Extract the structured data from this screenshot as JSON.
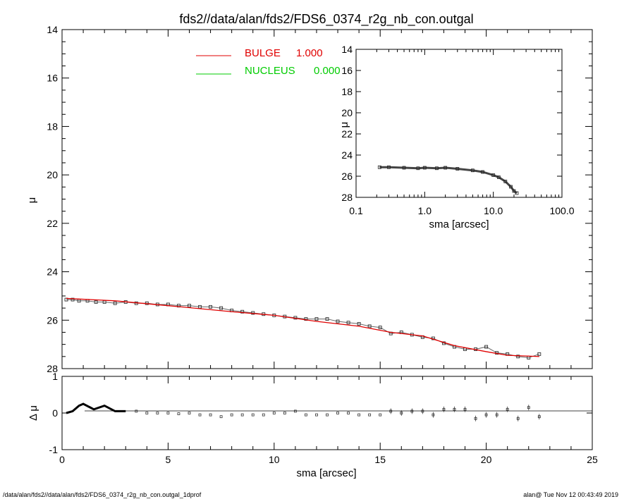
{
  "title": "fds2//data/alan/fds2/FDS6_0374_r2g_nb_con.outgal",
  "footer": {
    "left": "/data/alan/fds2//data/alan/fds2/FDS6_0374_r2g_nb_con.outgal_1dprof",
    "right": "alan@  Tue Nov 12 00:43:49 2019"
  },
  "colors": {
    "bulge": "#e00000",
    "nucleus": "#00cc00",
    "data": "#555555",
    "frame": "#000000"
  },
  "chart_data": [
    {
      "id": "main",
      "type": "scatter",
      "xlabel": "sma [arcsec]",
      "ylabel": "μ",
      "xlim": [
        0,
        25
      ],
      "ylim": [
        28,
        14
      ],
      "xticks": [
        "0",
        "5",
        "10",
        "15",
        "20",
        "25"
      ],
      "yticks": [
        "14",
        "16",
        "18",
        "20",
        "22",
        "24",
        "26",
        "28"
      ],
      "legend": [
        {
          "name": "BULGE",
          "value": "1.000",
          "color": "#e00000"
        },
        {
          "name": "NUCLEUS",
          "value": "0.000",
          "color": "#00cc00"
        }
      ],
      "legend_position": "top-center",
      "series": [
        {
          "name": "data",
          "x": [
            0.2,
            0.5,
            0.8,
            1.2,
            1.6,
            2.0,
            2.5,
            3.0,
            3.5,
            4.0,
            4.5,
            5.0,
            5.5,
            6.0,
            6.5,
            7.0,
            7.5,
            8.0,
            8.5,
            9.0,
            9.5,
            10.0,
            10.5,
            11.0,
            11.5,
            12.0,
            12.5,
            13.0,
            13.5,
            14.0,
            14.5,
            15.0,
            15.5,
            16.0,
            16.5,
            17.0,
            17.5,
            18.0,
            18.5,
            19.0,
            19.5,
            20.0,
            20.5,
            21.0,
            21.5,
            22.0,
            22.5
          ],
          "y": [
            25.15,
            25.15,
            25.2,
            25.2,
            25.25,
            25.25,
            25.3,
            25.25,
            25.3,
            25.3,
            25.35,
            25.35,
            25.4,
            25.4,
            25.45,
            25.45,
            25.5,
            25.6,
            25.65,
            25.7,
            25.75,
            25.8,
            25.85,
            25.9,
            25.95,
            25.95,
            25.95,
            26.05,
            26.1,
            26.15,
            26.25,
            26.3,
            26.55,
            26.5,
            26.6,
            26.7,
            26.75,
            26.95,
            27.1,
            27.2,
            27.2,
            27.1,
            27.35,
            27.4,
            27.5,
            27.55,
            27.4
          ]
        },
        {
          "name": "BULGE",
          "x": [
            0.2,
            2.5,
            5.0,
            8.0,
            10.0,
            12.0,
            14.0,
            15.5,
            17.0,
            18.5,
            20.0,
            21.0,
            22.5
          ],
          "y": [
            25.1,
            25.2,
            25.4,
            25.65,
            25.8,
            26.05,
            26.25,
            26.5,
            26.65,
            27.05,
            27.3,
            27.45,
            27.5
          ]
        }
      ]
    },
    {
      "id": "inset",
      "type": "line",
      "xlabel": "sma [arcsec]",
      "ylabel": "μ",
      "xscale": "log",
      "xlim": [
        0.1,
        100.0
      ],
      "ylim": [
        28,
        14
      ],
      "xticks": [
        "0.1",
        "1.0",
        "10.0",
        "100.0"
      ],
      "yticks": [
        "14",
        "16",
        "18",
        "20",
        "22",
        "24",
        "26",
        "28"
      ],
      "series": [
        {
          "name": "data",
          "x": [
            0.22,
            0.3,
            0.5,
            0.8,
            1.0,
            1.5,
            2.0,
            3.0,
            5.0,
            7.0,
            10.0,
            12.0,
            15.0,
            18.0,
            20.0,
            22.0
          ],
          "y": [
            25.15,
            25.15,
            25.2,
            25.25,
            25.2,
            25.25,
            25.2,
            25.3,
            25.45,
            25.6,
            25.9,
            26.1,
            26.5,
            27.0,
            27.4,
            27.6
          ]
        }
      ]
    },
    {
      "id": "residual",
      "type": "scatter",
      "xlabel": "sma [arcsec]",
      "ylabel": "Δ μ",
      "xlim": [
        0,
        25
      ],
      "ylim": [
        -1,
        1
      ],
      "yticks": [
        "-1",
        "0",
        "1"
      ],
      "series": [
        {
          "name": "residual",
          "x": [
            0.2,
            0.5,
            0.8,
            1.0,
            1.5,
            2.0,
            2.5,
            3.0,
            3.5,
            4.0,
            4.5,
            5.0,
            5.5,
            6.0,
            6.5,
            7.0,
            7.5,
            8.0,
            8.5,
            9.0,
            9.5,
            10.0,
            10.5,
            11.0,
            11.5,
            12.0,
            12.5,
            13.0,
            13.5,
            14.0,
            14.5,
            15.0,
            15.5,
            16.0,
            16.5,
            17.0,
            17.5,
            18.0,
            18.5,
            19.0,
            19.5,
            20.0,
            20.5,
            21.0,
            21.5,
            22.0,
            22.5
          ],
          "y": [
            0.0,
            0.05,
            0.2,
            0.25,
            0.1,
            0.2,
            0.05,
            0.05,
            0.05,
            0.0,
            0.0,
            0.0,
            -0.02,
            0.0,
            -0.05,
            -0.05,
            -0.1,
            -0.05,
            -0.05,
            -0.05,
            -0.05,
            0.0,
            0.0,
            0.05,
            -0.05,
            -0.05,
            -0.05,
            0.0,
            0.0,
            -0.05,
            -0.05,
            -0.05,
            0.05,
            0.0,
            0.05,
            0.05,
            -0.05,
            0.1,
            0.1,
            0.1,
            -0.15,
            -0.05,
            -0.05,
            0.1,
            -0.15,
            0.15,
            -0.1
          ]
        }
      ]
    }
  ]
}
